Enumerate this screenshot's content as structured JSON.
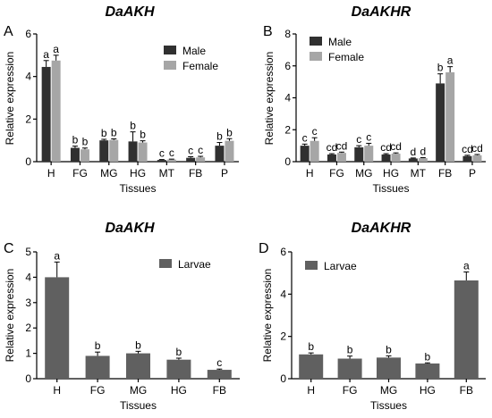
{
  "chart_data": [
    {
      "panel": "A",
      "type": "bar",
      "title": "DaAKH",
      "xlabel": "Tissues",
      "ylabel": "Relative expression",
      "ylim": [
        0,
        6
      ],
      "yticks": [
        0,
        2,
        4,
        6
      ],
      "categories": [
        "H",
        "FG",
        "MG",
        "HG",
        "MT",
        "FB",
        "P"
      ],
      "legend": "top-right",
      "series": [
        {
          "name": "Male",
          "color": "#303030",
          "values": [
            4.45,
            0.65,
            1.0,
            0.95,
            0.08,
            0.18,
            0.75
          ],
          "errors": [
            0.3,
            0.08,
            0.05,
            0.45,
            0.02,
            0.05,
            0.15
          ],
          "labels": [
            "a",
            "b",
            "b",
            "b",
            "c",
            "c",
            "b"
          ]
        },
        {
          "name": "Female",
          "color": "#a6a6a6",
          "values": [
            4.75,
            0.58,
            1.02,
            0.9,
            0.1,
            0.2,
            0.98
          ],
          "errors": [
            0.25,
            0.06,
            0.05,
            0.08,
            0.02,
            0.05,
            0.1
          ],
          "labels": [
            "a",
            "b",
            "b",
            "b",
            "c",
            "c",
            "b"
          ]
        }
      ]
    },
    {
      "panel": "B",
      "type": "bar",
      "title": "DaAKHR",
      "xlabel": "Tissues",
      "ylabel": "Relative expression",
      "ylim": [
        0,
        8
      ],
      "yticks": [
        0,
        2,
        4,
        6,
        8
      ],
      "categories": [
        "H",
        "FG",
        "MG",
        "HG",
        "MT",
        "FB",
        "P"
      ],
      "legend": "top-left",
      "series": [
        {
          "name": "Male",
          "color": "#303030",
          "values": [
            1.0,
            0.45,
            0.9,
            0.45,
            0.2,
            4.9,
            0.35
          ],
          "errors": [
            0.1,
            0.05,
            0.1,
            0.05,
            0.03,
            0.6,
            0.05
          ],
          "labels": [
            "c",
            "cd",
            "c",
            "cd",
            "d",
            "b",
            "cd"
          ]
        },
        {
          "name": "Female",
          "color": "#a6a6a6",
          "values": [
            1.3,
            0.55,
            1.0,
            0.5,
            0.22,
            5.6,
            0.4
          ],
          "errors": [
            0.2,
            0.05,
            0.15,
            0.05,
            0.03,
            0.35,
            0.05
          ],
          "labels": [
            "c",
            "cd",
            "c",
            "cd",
            "d",
            "a",
            "cd"
          ]
        }
      ]
    },
    {
      "panel": "C",
      "type": "bar",
      "title": "DaAKH",
      "xlabel": "Tissues",
      "ylabel": "Relative expression",
      "ylim": [
        0,
        5
      ],
      "yticks": [
        0,
        1,
        2,
        3,
        4,
        5
      ],
      "categories": [
        "H",
        "FG",
        "MG",
        "HG",
        "FB"
      ],
      "legend": "top-right",
      "series": [
        {
          "name": "Larvae",
          "color": "#606060",
          "values": [
            4.0,
            0.9,
            1.0,
            0.75,
            0.35
          ],
          "errors": [
            0.6,
            0.15,
            0.08,
            0.06,
            0.03
          ],
          "labels": [
            "a",
            "b",
            "b",
            "b",
            "c"
          ]
        }
      ]
    },
    {
      "panel": "D",
      "type": "bar",
      "title": "DaAKHR",
      "xlabel": "Tissues",
      "ylabel": "Relative expression",
      "ylim": [
        0,
        6
      ],
      "yticks": [
        0,
        2,
        4,
        6
      ],
      "categories": [
        "H",
        "FG",
        "MG",
        "HG",
        "FB"
      ],
      "legend": "top-left",
      "series": [
        {
          "name": "Larvae",
          "color": "#606060",
          "values": [
            1.15,
            0.95,
            1.0,
            0.72,
            4.65
          ],
          "errors": [
            0.07,
            0.12,
            0.08,
            0.03,
            0.4
          ],
          "labels": [
            "b",
            "b",
            "b",
            "b",
            "a"
          ]
        }
      ]
    }
  ]
}
